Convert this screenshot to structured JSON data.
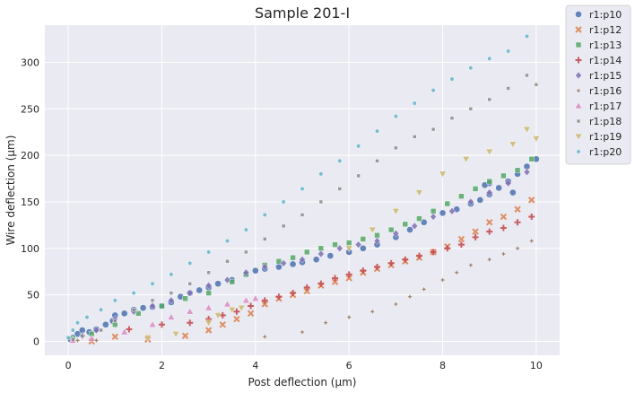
{
  "chart_data": {
    "type": "scatter",
    "title": "Sample 201-I",
    "xlabel": "Post deflection (μm)",
    "ylabel": "Wire deflection (μm)",
    "xlim": [
      -0.5,
      10.5
    ],
    "ylim": [
      -15,
      340
    ],
    "xticks": [
      0,
      2,
      4,
      6,
      8,
      10
    ],
    "yticks": [
      0,
      50,
      100,
      150,
      200,
      250,
      300
    ],
    "grid": true,
    "background": "#eaeaf2",
    "legend_position": "outside-right",
    "series": [
      {
        "name": "r1:p10",
        "marker": "circle",
        "color": "#4c72b0",
        "points": [
          [
            0.05,
            2
          ],
          [
            0.1,
            4
          ],
          [
            0.2,
            8
          ],
          [
            0.3,
            12
          ],
          [
            0.45,
            10
          ],
          [
            0.6,
            13
          ],
          [
            0.8,
            18
          ],
          [
            0.95,
            22
          ],
          [
            1.0,
            28
          ],
          [
            1.2,
            30
          ],
          [
            1.4,
            34
          ],
          [
            1.6,
            36
          ],
          [
            1.8,
            37
          ],
          [
            2.0,
            38
          ],
          [
            2.2,
            42
          ],
          [
            2.4,
            48
          ],
          [
            2.6,
            52
          ],
          [
            2.8,
            55
          ],
          [
            3.0,
            58
          ],
          [
            3.2,
            62
          ],
          [
            3.5,
            66
          ],
          [
            3.8,
            72
          ],
          [
            4.0,
            76
          ],
          [
            4.2,
            78
          ],
          [
            4.5,
            80
          ],
          [
            4.8,
            83
          ],
          [
            5.0,
            85
          ],
          [
            5.3,
            88
          ],
          [
            5.6,
            92
          ],
          [
            6.0,
            96
          ],
          [
            6.3,
            100
          ],
          [
            6.6,
            104
          ],
          [
            7.0,
            112
          ],
          [
            7.3,
            120
          ],
          [
            7.6,
            128
          ],
          [
            8.0,
            138
          ],
          [
            8.3,
            142
          ],
          [
            8.6,
            148
          ],
          [
            8.8,
            152
          ],
          [
            9.0,
            158
          ],
          [
            9.2,
            165
          ],
          [
            9.4,
            172
          ],
          [
            9.6,
            180
          ],
          [
            9.8,
            188
          ],
          [
            10.0,
            196
          ],
          [
            9.5,
            160
          ],
          [
            9.0,
            170
          ],
          [
            8.9,
            168
          ]
        ]
      },
      {
        "name": "r1:p12",
        "marker": "x",
        "color": "#dd8452",
        "points": [
          [
            0.5,
            0
          ],
          [
            1.0,
            5
          ],
          [
            1.7,
            2
          ],
          [
            2.5,
            6
          ],
          [
            3.0,
            12
          ],
          [
            3.3,
            18
          ],
          [
            3.6,
            24
          ],
          [
            3.9,
            30
          ],
          [
            4.2,
            40
          ],
          [
            4.5,
            46
          ],
          [
            4.8,
            50
          ],
          [
            5.1,
            54
          ],
          [
            5.4,
            60
          ],
          [
            5.7,
            64
          ],
          [
            6.0,
            68
          ],
          [
            6.3,
            74
          ],
          [
            6.6,
            78
          ],
          [
            6.9,
            82
          ],
          [
            7.2,
            86
          ],
          [
            7.5,
            90
          ],
          [
            7.8,
            96
          ],
          [
            8.1,
            102
          ],
          [
            8.4,
            110
          ],
          [
            8.7,
            118
          ],
          [
            9.0,
            128
          ],
          [
            9.3,
            134
          ],
          [
            9.6,
            142
          ],
          [
            9.9,
            152
          ]
        ]
      },
      {
        "name": "r1:p13",
        "marker": "square",
        "color": "#55a868",
        "points": [
          [
            0.1,
            3
          ],
          [
            0.5,
            8
          ],
          [
            1.0,
            18
          ],
          [
            1.5,
            30
          ],
          [
            2.0,
            38
          ],
          [
            2.5,
            46
          ],
          [
            3.0,
            52
          ],
          [
            3.5,
            64
          ],
          [
            3.8,
            72
          ],
          [
            4.2,
            82
          ],
          [
            4.5,
            86
          ],
          [
            4.8,
            90
          ],
          [
            5.1,
            96
          ],
          [
            5.4,
            100
          ],
          [
            5.7,
            104
          ],
          [
            6.0,
            106
          ],
          [
            6.3,
            110
          ],
          [
            6.6,
            114
          ],
          [
            6.9,
            120
          ],
          [
            7.2,
            126
          ],
          [
            7.5,
            132
          ],
          [
            7.8,
            140
          ],
          [
            8.1,
            148
          ],
          [
            8.4,
            156
          ],
          [
            8.7,
            164
          ],
          [
            9.0,
            172
          ],
          [
            9.3,
            178
          ],
          [
            9.6,
            184
          ],
          [
            9.9,
            196
          ]
        ]
      },
      {
        "name": "r1:p14",
        "marker": "plus",
        "color": "#c44e52",
        "points": [
          [
            1.3,
            13
          ],
          [
            2.0,
            18
          ],
          [
            2.6,
            20
          ],
          [
            3.0,
            24
          ],
          [
            3.3,
            28
          ],
          [
            3.6,
            32
          ],
          [
            3.9,
            38
          ],
          [
            4.2,
            44
          ],
          [
            4.5,
            48
          ],
          [
            4.8,
            52
          ],
          [
            5.1,
            58
          ],
          [
            5.4,
            62
          ],
          [
            5.7,
            68
          ],
          [
            6.0,
            72
          ],
          [
            6.3,
            76
          ],
          [
            6.6,
            80
          ],
          [
            6.9,
            84
          ],
          [
            7.2,
            88
          ],
          [
            7.5,
            92
          ],
          [
            7.8,
            96
          ],
          [
            8.1,
            100
          ],
          [
            8.4,
            104
          ],
          [
            8.7,
            112
          ],
          [
            9.0,
            118
          ],
          [
            9.3,
            122
          ],
          [
            9.6,
            128
          ],
          [
            9.9,
            134
          ]
        ]
      },
      {
        "name": "r1:p15",
        "marker": "diamond",
        "color": "#8172b3",
        "points": [
          [
            0.1,
            1
          ],
          [
            0.3,
            6
          ],
          [
            0.6,
            12
          ],
          [
            1.0,
            24
          ],
          [
            1.4,
            32
          ],
          [
            1.8,
            38
          ],
          [
            2.2,
            44
          ],
          [
            2.6,
            52
          ],
          [
            3.0,
            60
          ],
          [
            3.4,
            66
          ],
          [
            3.8,
            74
          ],
          [
            4.2,
            80
          ],
          [
            4.6,
            84
          ],
          [
            5.0,
            88
          ],
          [
            5.4,
            94
          ],
          [
            5.8,
            100
          ],
          [
            6.2,
            104
          ],
          [
            6.6,
            108
          ],
          [
            7.0,
            116
          ],
          [
            7.4,
            124
          ],
          [
            7.8,
            134
          ],
          [
            8.2,
            140
          ],
          [
            8.6,
            150
          ],
          [
            9.0,
            160
          ],
          [
            9.4,
            170
          ],
          [
            9.8,
            182
          ]
        ]
      },
      {
        "name": "r1:p16",
        "marker": "star",
        "color": "#937860",
        "points": [
          [
            0.2,
            1
          ],
          [
            0.6,
            1
          ],
          [
            4.2,
            5
          ],
          [
            5.0,
            10
          ],
          [
            5.5,
            20
          ],
          [
            6.0,
            26
          ],
          [
            6.5,
            32
          ],
          [
            7.0,
            40
          ],
          [
            7.3,
            48
          ],
          [
            7.6,
            56
          ],
          [
            8.0,
            66
          ],
          [
            8.3,
            74
          ],
          [
            8.6,
            82
          ],
          [
            9.0,
            88
          ],
          [
            9.3,
            94
          ],
          [
            9.6,
            100
          ],
          [
            9.9,
            108
          ]
        ]
      },
      {
        "name": "r1:p17",
        "marker": "triangle-up",
        "color": "#da8bc3",
        "points": [
          [
            0.1,
            1
          ],
          [
            0.5,
            3
          ],
          [
            1.2,
            10
          ],
          [
            1.8,
            18
          ],
          [
            2.2,
            26
          ],
          [
            2.6,
            32
          ],
          [
            3.0,
            36
          ],
          [
            3.4,
            40
          ],
          [
            3.8,
            44
          ],
          [
            4.0,
            46
          ]
        ]
      },
      {
        "name": "r1:p18",
        "marker": "square-small",
        "color": "#8c8c8c",
        "points": [
          [
            0.1,
            2
          ],
          [
            0.3,
            6
          ],
          [
            0.7,
            12
          ],
          [
            1.0,
            22
          ],
          [
            1.4,
            34
          ],
          [
            1.8,
            44
          ],
          [
            2.2,
            52
          ],
          [
            2.6,
            62
          ],
          [
            3.0,
            74
          ],
          [
            3.4,
            86
          ],
          [
            3.8,
            96
          ],
          [
            4.2,
            110
          ],
          [
            4.6,
            124
          ],
          [
            5.0,
            136
          ],
          [
            5.4,
            150
          ],
          [
            5.8,
            164
          ],
          [
            6.2,
            178
          ],
          [
            6.6,
            194
          ],
          [
            7.0,
            208
          ],
          [
            7.4,
            220
          ],
          [
            7.8,
            228
          ],
          [
            8.2,
            240
          ],
          [
            8.6,
            250
          ],
          [
            9.0,
            260
          ],
          [
            9.4,
            272
          ],
          [
            9.8,
            286
          ],
          [
            10.0,
            276
          ]
        ]
      },
      {
        "name": "r1:p19",
        "marker": "triangle-down",
        "color": "#ccb974",
        "points": [
          [
            1.7,
            4
          ],
          [
            2.3,
            8
          ],
          [
            3.0,
            20
          ],
          [
            3.2,
            28
          ],
          [
            3.5,
            34
          ],
          [
            3.7,
            36
          ],
          [
            6.0,
            100
          ],
          [
            6.5,
            120
          ],
          [
            7.0,
            140
          ],
          [
            7.5,
            160
          ],
          [
            8.0,
            180
          ],
          [
            8.5,
            196
          ],
          [
            9.0,
            204
          ],
          [
            9.5,
            212
          ],
          [
            9.8,
            228
          ],
          [
            10.0,
            218
          ]
        ]
      },
      {
        "name": "r1:p20",
        "marker": "hexagon",
        "color": "#64b5cd",
        "points": [
          [
            0.0,
            4
          ],
          [
            0.1,
            12
          ],
          [
            0.2,
            20
          ],
          [
            0.4,
            26
          ],
          [
            0.7,
            34
          ],
          [
            1.0,
            44
          ],
          [
            1.4,
            52
          ],
          [
            1.8,
            62
          ],
          [
            2.2,
            72
          ],
          [
            2.6,
            84
          ],
          [
            3.0,
            96
          ],
          [
            3.4,
            108
          ],
          [
            3.8,
            120
          ],
          [
            4.2,
            136
          ],
          [
            4.6,
            150
          ],
          [
            5.0,
            164
          ],
          [
            5.4,
            180
          ],
          [
            5.8,
            194
          ],
          [
            6.2,
            210
          ],
          [
            6.6,
            226
          ],
          [
            7.0,
            242
          ],
          [
            7.4,
            256
          ],
          [
            7.8,
            270
          ],
          [
            8.2,
            282
          ],
          [
            8.6,
            294
          ],
          [
            9.0,
            304
          ],
          [
            9.4,
            312
          ],
          [
            9.8,
            328
          ]
        ]
      }
    ]
  }
}
